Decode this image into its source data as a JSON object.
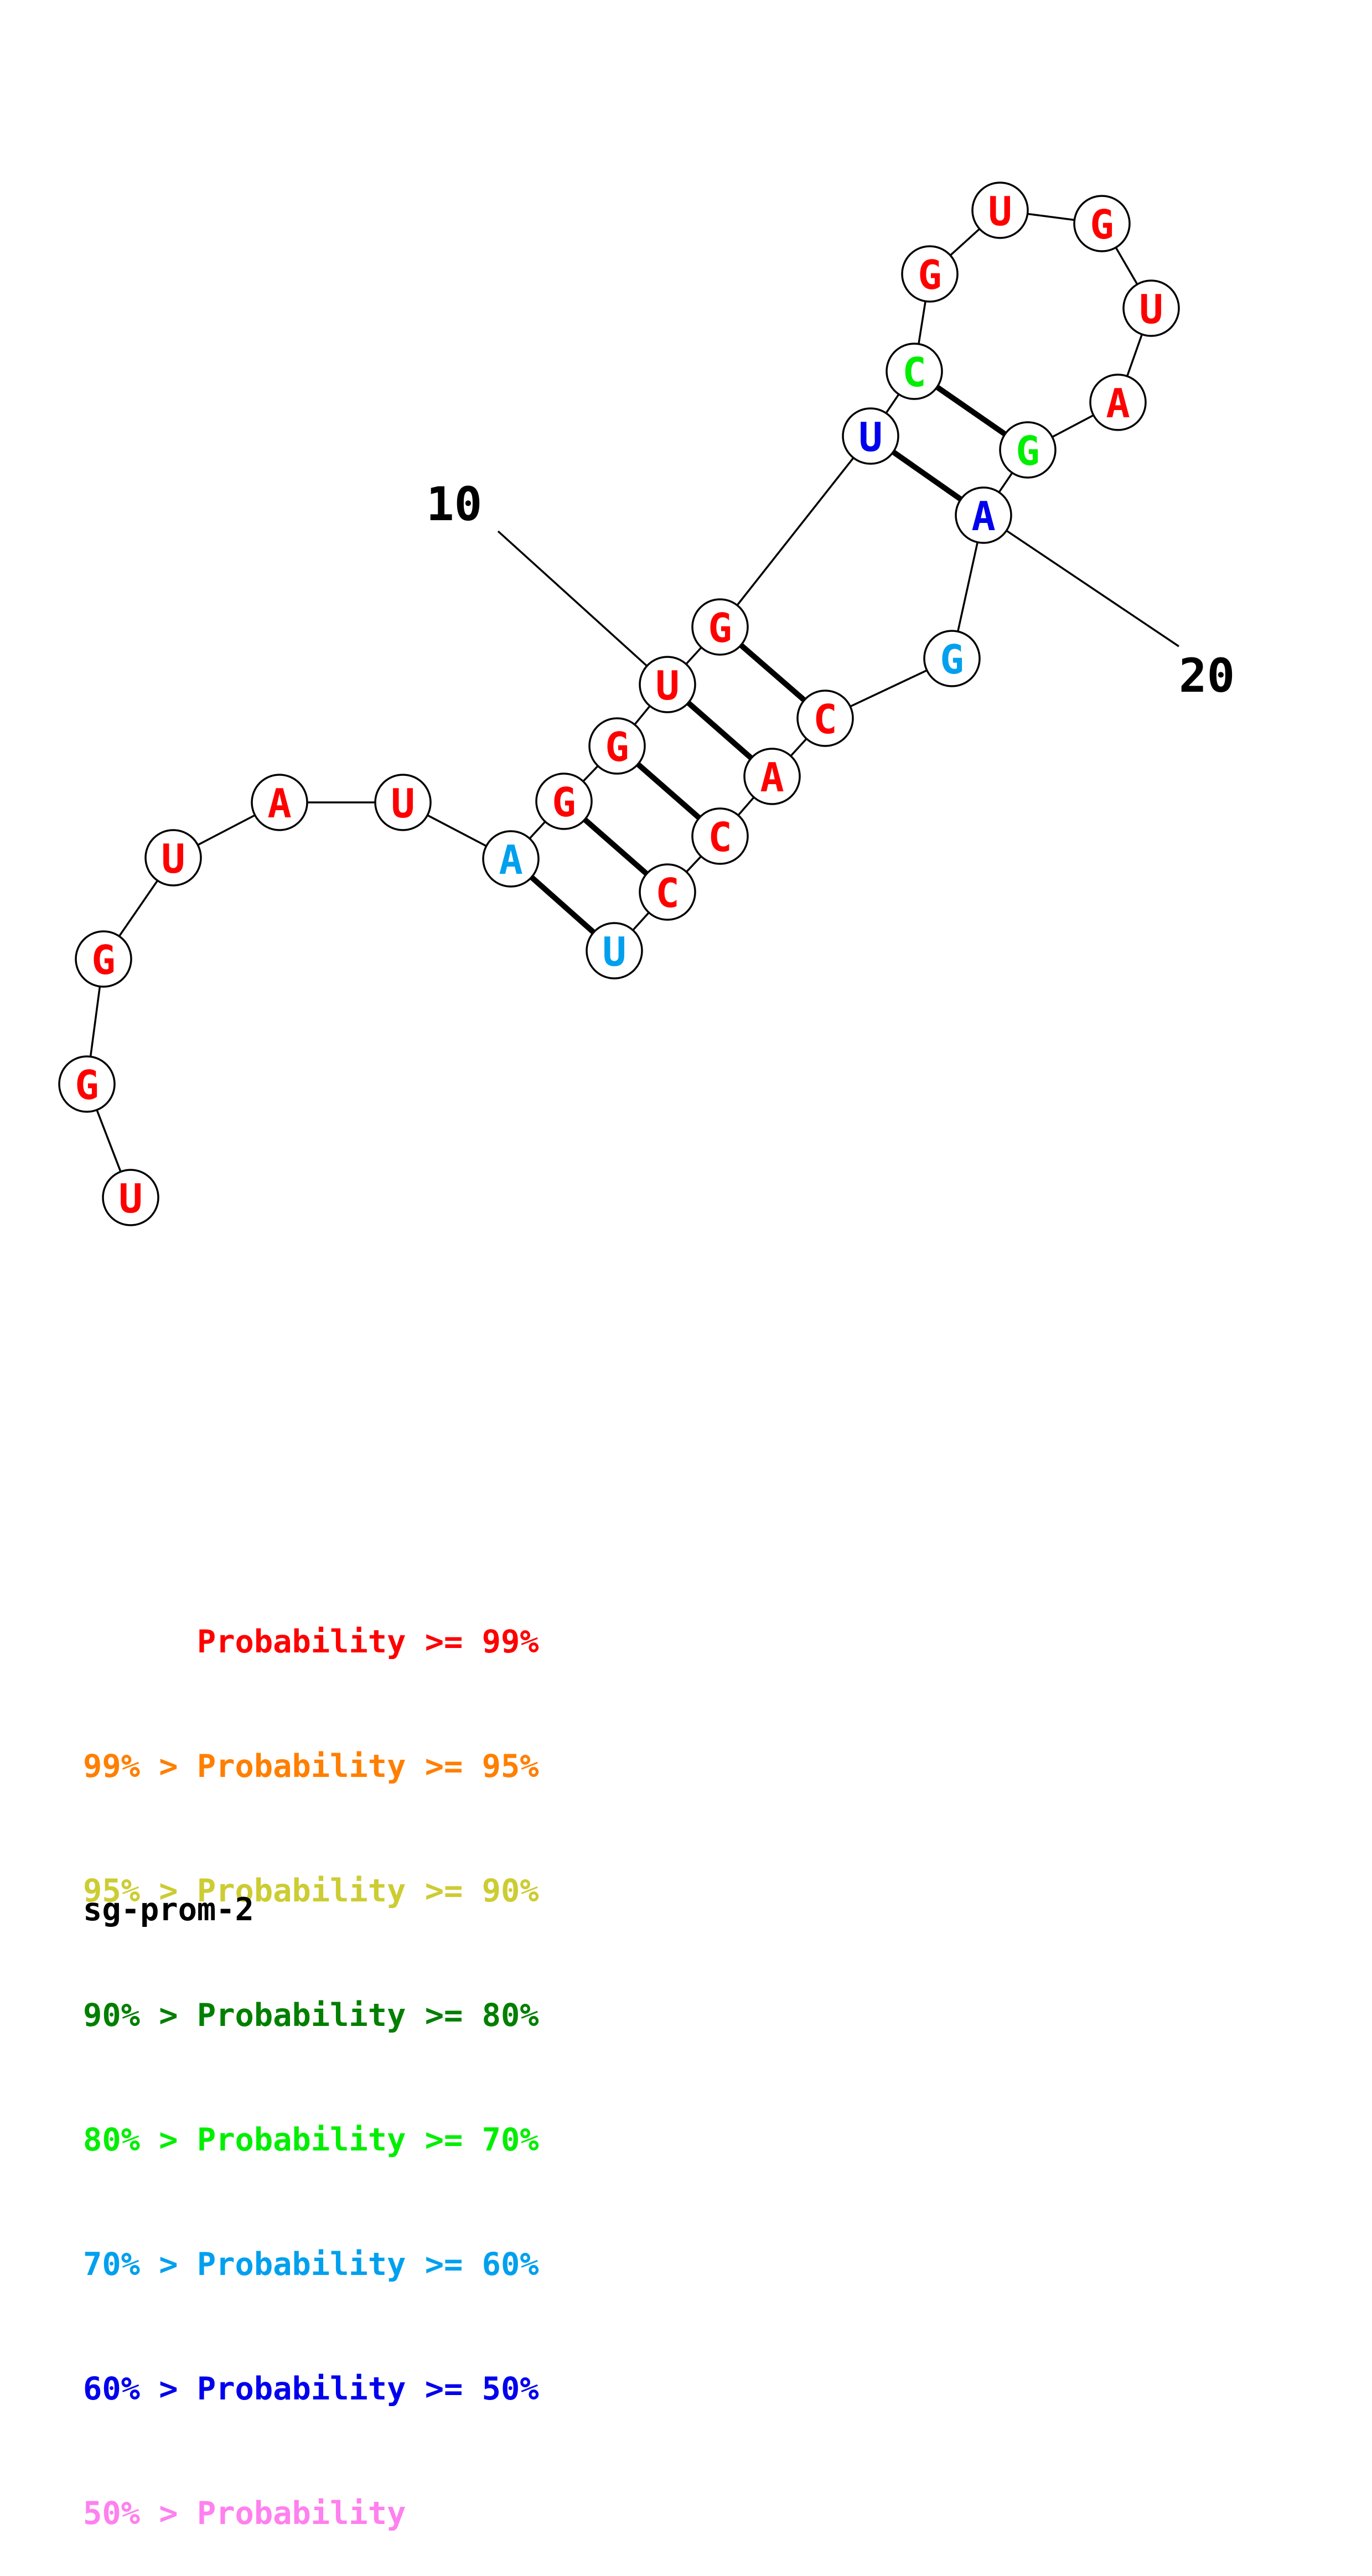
{
  "colors": {
    "red": "#ff0000",
    "orange": "#ff7f00",
    "yellow": "#cccc33",
    "dark_green": "#007f00",
    "green": "#00ee00",
    "light_blue": "#00a0ee",
    "blue": "#0000ee",
    "pink": "#ff80ee"
  },
  "sequence": [
    {
      "base": "U",
      "color": "#ff0000"
    },
    {
      "base": "G",
      "color": "#ff0000"
    },
    {
      "base": "G",
      "color": "#ff0000"
    },
    {
      "base": "U",
      "color": "#ff0000"
    },
    {
      "base": "A",
      "color": "#ff0000"
    },
    {
      "base": "U",
      "color": "#ff0000"
    },
    {
      "base": "A",
      "color": "#00a0ee"
    },
    {
      "base": "G",
      "color": "#ff0000"
    },
    {
      "base": "G",
      "color": "#ff0000"
    },
    {
      "base": "U",
      "color": "#ff0000"
    },
    {
      "base": "G",
      "color": "#ff0000"
    },
    {
      "base": "U",
      "color": "#0000ee"
    },
    {
      "base": "C",
      "color": "#00ee00"
    },
    {
      "base": "G",
      "color": "#ff0000"
    },
    {
      "base": "U",
      "color": "#ff0000"
    },
    {
      "base": "G",
      "color": "#ff0000"
    },
    {
      "base": "U",
      "color": "#ff0000"
    },
    {
      "base": "A",
      "color": "#ff0000"
    },
    {
      "base": "G",
      "color": "#00ee00"
    },
    {
      "base": "A",
      "color": "#0000ee"
    },
    {
      "base": "G",
      "color": "#00a0ee"
    },
    {
      "base": "C",
      "color": "#ff0000"
    },
    {
      "base": "A",
      "color": "#ff0000"
    },
    {
      "base": "C",
      "color": "#ff0000"
    },
    {
      "base": "C",
      "color": "#ff0000"
    },
    {
      "base": "U",
      "color": "#00a0ee"
    }
  ],
  "base_pairs": [
    [
      7,
      26
    ],
    [
      8,
      25
    ],
    [
      9,
      24
    ],
    [
      10,
      23
    ],
    [
      11,
      22
    ],
    [
      12,
      20
    ],
    [
      13,
      19
    ]
  ],
  "position_markers": [
    {
      "position": 10,
      "label": "10"
    },
    {
      "position": 20,
      "label": "20"
    }
  ],
  "legend": [
    {
      "text": "      Probability >= 99%",
      "color": "#ff0000"
    },
    {
      "text": "99% > Probability >= 95%",
      "color": "#ff7f00"
    },
    {
      "text": "95% > Probability >= 90%",
      "color": "#cccc33"
    },
    {
      "text": "90% > Probability >= 80%",
      "color": "#007f00"
    },
    {
      "text": "80% > Probability >= 70%",
      "color": "#00ee00"
    },
    {
      "text": "70% > Probability >= 60%",
      "color": "#00a0ee"
    },
    {
      "text": "60% > Probability >= 50%",
      "color": "#0000ee"
    },
    {
      "text": "50% > Probability",
      "color": "#ff80ee"
    }
  ],
  "structure_name": "sg-prom-2"
}
